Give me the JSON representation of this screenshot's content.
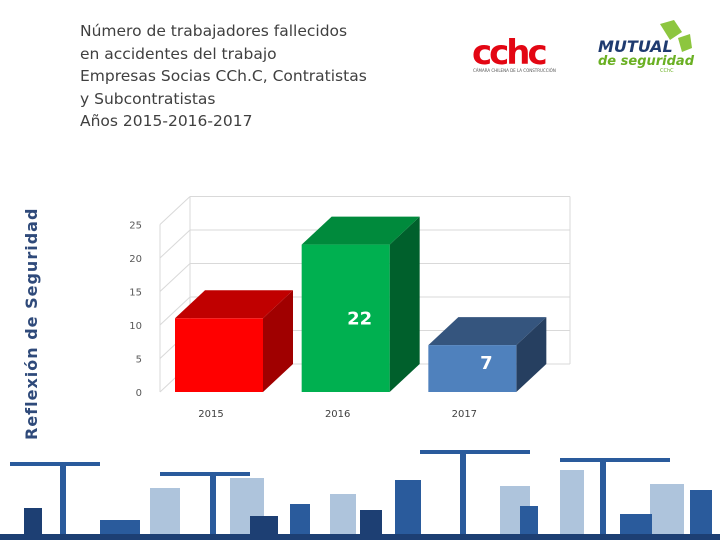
{
  "side_label": "Reflexión de Seguridad",
  "title_lines": [
    "Número de trabajadores fallecidos",
    "en accidentes del trabajo",
    "Empresas Socias CCh.C, Contratistas",
    "y Subcontratistas",
    "Años 2015-2016-2017"
  ],
  "logos": {
    "cchc": {
      "text": "cchc",
      "subtitle": "CÁMARA CHILENA DE LA CONSTRUCCIÓN"
    },
    "mutual": {
      "line1": "MUTUAL",
      "line2": "de seguridad",
      "line3": "CChC"
    }
  },
  "chart_data": {
    "type": "bar",
    "categories": [
      "2015",
      "2016",
      "2017"
    ],
    "values": [
      11,
      22,
      7
    ],
    "data_labels": [
      "",
      "22",
      "7"
    ],
    "yticks": [
      0,
      5,
      10,
      15,
      20,
      25
    ],
    "ylim": [
      0,
      25
    ],
    "grid": true,
    "colors": {
      "front": [
        "#ff0000",
        "#00b050",
        "#4f81bd"
      ],
      "side": [
        "#a00000",
        "#00602c",
        "#263f60"
      ],
      "top": [
        "#c00000",
        "#008a3c",
        "#35557e"
      ]
    }
  }
}
